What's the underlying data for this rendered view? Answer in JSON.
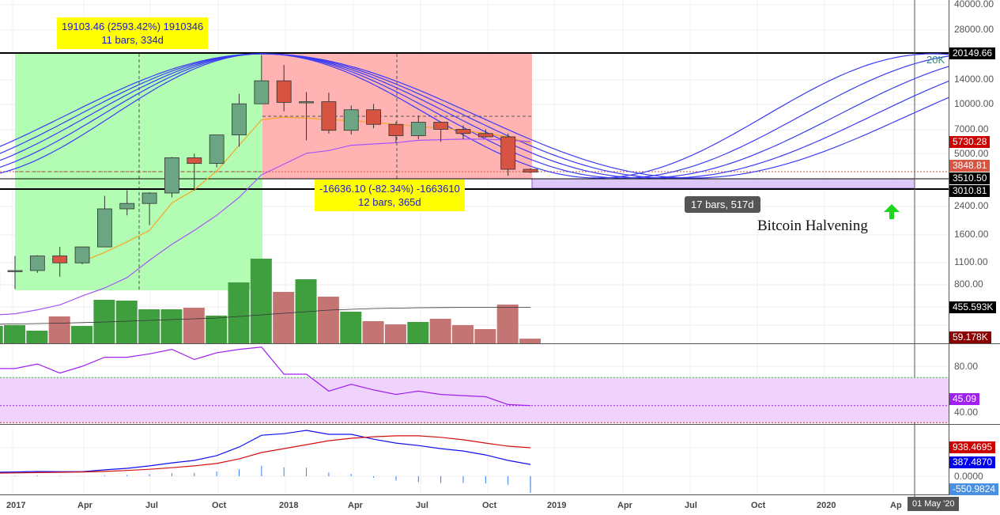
{
  "chart_data": {
    "type": "candlestick",
    "scale": "log",
    "interval": "monthly",
    "months": [
      "Dec 2016",
      "Jan 2017",
      "Feb 2017",
      "Mar 2017",
      "Apr 2017",
      "May 2017",
      "Jun 2017",
      "Jul 2017",
      "Aug 2017",
      "Sep 2017",
      "Oct 2017",
      "Nov 2017",
      "Dec 2017",
      "Jan 2018",
      "Feb 2018",
      "Mar 2018",
      "Apr 2018",
      "May 2018",
      "Jun 2018",
      "Jul 2018",
      "Aug 2018",
      "Sep 2018",
      "Oct 2018",
      "Nov 2018",
      "Dec 2018"
    ],
    "ohlc": [
      [
        750,
        980,
        740,
        963
      ],
      [
        963,
        1190,
        750,
        970
      ],
      [
        970,
        1200,
        940,
        1190
      ],
      [
        1190,
        1350,
        890,
        1080
      ],
      [
        1080,
        1350,
        1060,
        1350
      ],
      [
        1350,
        2760,
        1350,
        2300
      ],
      [
        2300,
        2980,
        2100,
        2480
      ],
      [
        2480,
        2900,
        1830,
        2870
      ],
      [
        2870,
        4750,
        2700,
        4700
      ],
      [
        4700,
        4980,
        2970,
        4340
      ],
      [
        4340,
        6470,
        4110,
        6470
      ],
      [
        6470,
        11500,
        5500,
        10000
      ],
      [
        10000,
        19800,
        10000,
        13800
      ],
      [
        13800,
        17200,
        9000,
        10200
      ],
      [
        10200,
        11800,
        6000,
        10300
      ],
      [
        10300,
        11700,
        6600,
        6900
      ],
      [
        6900,
        9750,
        6500,
        9200
      ],
      [
        9200,
        9990,
        7100,
        7500
      ],
      [
        7500,
        7760,
        5780,
        6400
      ],
      [
        6400,
        8500,
        6100,
        7730
      ],
      [
        7730,
        7760,
        5880,
        7000
      ],
      [
        7000,
        7400,
        6100,
        6600
      ],
      [
        6600,
        7000,
        6200,
        6300
      ],
      [
        6300,
        6600,
        3650,
        4000
      ],
      [
        4000,
        4050,
        3800,
        3848.81
      ]
    ],
    "ma_fast": [
      null,
      null,
      null,
      null,
      1100,
      1250,
      1450,
      1700,
      2500,
      3000,
      3900,
      5600,
      8000,
      8300,
      8200,
      8000,
      7900,
      7700,
      7500,
      7300,
      7100,
      6900,
      6600,
      6300,
      5730.28
    ],
    "ma_slow": [
      520,
      530,
      560,
      600,
      680,
      760,
      880,
      1120,
      1400,
      1700,
      2100,
      2700,
      3700,
      4300,
      5000,
      5200,
      5600,
      5700,
      5800,
      6000,
      6050,
      6100,
      6100,
      6000,
      5900
    ],
    "volume_k": [
      220,
      230,
      160,
      340,
      220,
      550,
      540,
      430,
      430,
      450,
      350,
      770,
      1070,
      650,
      810,
      590,
      400,
      280,
      240,
      270,
      310,
      230,
      180,
      490,
      59.178
    ],
    "volume_ma_k": [
      240,
      245,
      250,
      255,
      262,
      270,
      280,
      290,
      300,
      310,
      320,
      340,
      360,
      380,
      400,
      420,
      430,
      440,
      445,
      450,
      452,
      454,
      455,
      455,
      455.593
    ],
    "rsi": [
      78,
      78,
      82,
      74,
      80,
      88,
      88,
      91,
      95,
      86,
      92,
      95,
      97,
      73,
      73,
      58,
      64,
      59,
      55,
      58,
      55,
      54,
      53,
      46,
      45.09
    ],
    "rsi_band": [
      30,
      70
    ],
    "macd": [
      130,
      140,
      156,
      150,
      150,
      210,
      260,
      340,
      440,
      520,
      680,
      960,
      1350,
      1400,
      1510,
      1380,
      1380,
      1220,
      1090,
      1010,
      910,
      830,
      700,
      520,
      387.487
    ],
    "macd_signal": [
      100,
      110,
      120,
      130,
      140,
      160,
      190,
      230,
      280,
      340,
      420,
      570,
      780,
      910,
      1040,
      1170,
      1250,
      1300,
      1330,
      1330,
      1280,
      1200,
      1090,
      990,
      938.4695
    ],
    "macd_histogram_last": -550.9824,
    "price_ticks": [
      "40000.00",
      "28000.00",
      "14000.00",
      "10000.00",
      "7000.00",
      "5000.00",
      "2400.00",
      "1600.00",
      "1100.00",
      "800.00"
    ],
    "price_levels": {
      "high": "20149.66",
      "ma_fast": "5730.28",
      "last": "3848.81",
      "partial": "3510.50",
      "low": "3010.81"
    },
    "volume_labels": {
      "ma": "455.593K",
      "last": "59.178K"
    },
    "rsi_ticks": [
      "80.00",
      "40.00"
    ],
    "rsi_last": "45.09",
    "macd_labels": {
      "signal": "938.4695",
      "macd": "387.4870",
      "zero": "0.0000",
      "hist": "-550.9824"
    },
    "x_ticks": [
      "2017",
      "Apr",
      "Jul",
      "Oct",
      "2018",
      "Apr",
      "Jul",
      "Oct",
      "2019",
      "Apr",
      "Jul",
      "Oct",
      "2020",
      "Ap"
    ],
    "cursor_date": "01 May '20",
    "annotations": {
      "rise_line1": "19103.46 (2593.42%) 1910346",
      "rise_line2": "11 bars, 334d",
      "fall_line1": "-16636.10 (-82.34%) -1663610",
      "fall_line2": "12 bars, 365d",
      "projection": "17 bars, 517d",
      "halvening": "Bitcoin Halvening",
      "level_20k": "20K"
    },
    "colors": {
      "up": "#6ba583",
      "down": "#d75442",
      "vol_up": "#3f9f3f",
      "vol_down": "#c57474",
      "rise_zone": "#b3fcb3",
      "fall_zone": "#ffb3b3",
      "arcs": "#3b3bf5",
      "rsi": "#a020f0",
      "macd": "#1010ee",
      "signal": "#d01010"
    }
  }
}
